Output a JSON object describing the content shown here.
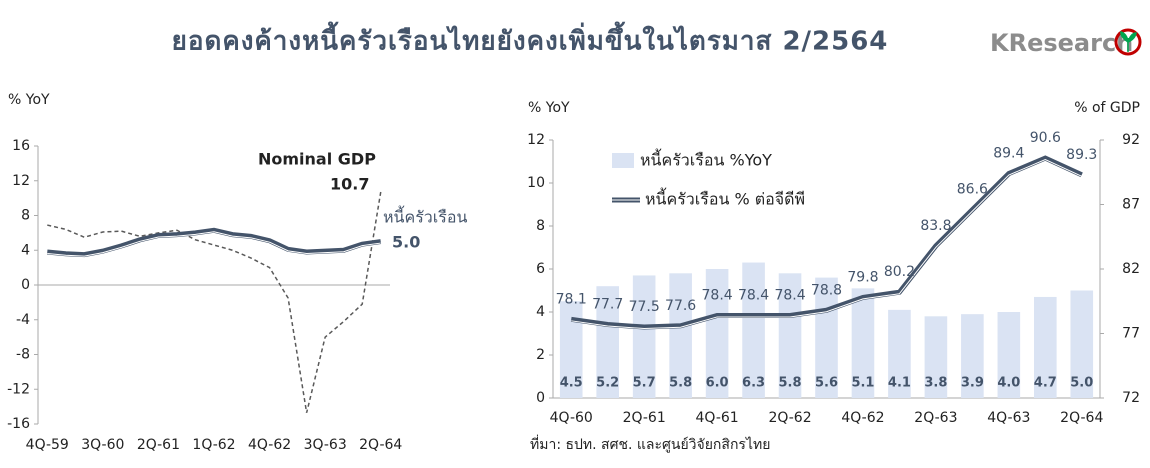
{
  "title": "ยอดคงค้างหนี้ครัวเรือนไทยยังคงเพิ่มขึ้นในไตรมาส 2/2564",
  "logo": "KResearch",
  "source": "ที่มา: ธปท. สศช. และศูนย์วิจัยกสิกรไทย",
  "chart_data": [
    {
      "type": "line",
      "y_label": "% YoY",
      "categories": [
        "4Q-59",
        null,
        null,
        "3Q-60",
        null,
        null,
        "2Q-61",
        null,
        null,
        "1Q-62",
        null,
        null,
        "4Q-62",
        null,
        null,
        "3Q-63",
        null,
        null,
        "2Q-64"
      ],
      "ylim": [
        -16,
        16
      ],
      "yticks": [
        -16,
        -12,
        -8,
        -4,
        0,
        4,
        8,
        12,
        16
      ],
      "series": [
        {
          "name": "Nominal GDP",
          "color": "#595959",
          "dashed": true,
          "last_label": "10.7",
          "values": [
            6.9,
            6.4,
            5.5,
            6.1,
            6.2,
            5.6,
            6.0,
            6.3,
            5.2,
            4.6,
            4.0,
            3.1,
            2.0,
            -1.5,
            -14.7,
            -6.0,
            -4.2,
            -2.2,
            10.7
          ]
        },
        {
          "name": "หนี้ครัวเรือน",
          "color": "#44546a",
          "dashed": false,
          "last_label": "5.0",
          "values": [
            3.8,
            3.6,
            3.5,
            3.9,
            4.5,
            5.2,
            5.7,
            5.8,
            6.0,
            6.3,
            5.8,
            5.6,
            5.1,
            4.1,
            3.8,
            3.9,
            4.0,
            4.7,
            5.0
          ]
        }
      ]
    },
    {
      "type": "bar",
      "y_label": "% YoY",
      "y2_label": "% of GDP",
      "categories": [
        "4Q-60",
        null,
        "2Q-61",
        null,
        "4Q-61",
        null,
        "2Q-62",
        null,
        "4Q-62",
        null,
        "2Q-63",
        null,
        "4Q-63",
        null,
        "2Q-64"
      ],
      "ylim": [
        0,
        12
      ],
      "yticks": [
        0,
        2,
        4,
        6,
        8,
        10,
        12
      ],
      "y2lim": [
        72,
        92
      ],
      "y2ticks": [
        72,
        77,
        82,
        87,
        92
      ],
      "series": [
        {
          "name": "หนี้ครัวเรือน %YoY",
          "color": "#dae3f3",
          "values": [
            4.5,
            5.2,
            5.7,
            5.8,
            6.0,
            6.3,
            5.8,
            5.6,
            5.1,
            4.1,
            3.8,
            3.9,
            4.0,
            4.7,
            5.0
          ],
          "value_labels": [
            "4.5",
            "5.2",
            "5.7",
            "5.8",
            "6.0",
            "6.3",
            "5.8",
            "5.6",
            "5.1",
            "4.1",
            "3.8",
            "3.9",
            "4.0",
            "4.7",
            "5.0"
          ]
        },
        {
          "name": "หนี้ครัวเรือน % ต่อจีดีพี",
          "color": "#44546a",
          "axis": "y2",
          "values": [
            78.1,
            77.7,
            77.5,
            77.6,
            78.4,
            78.4,
            78.4,
            78.8,
            79.8,
            80.2,
            83.8,
            86.6,
            89.4,
            90.6,
            89.3
          ]
        }
      ]
    }
  ]
}
